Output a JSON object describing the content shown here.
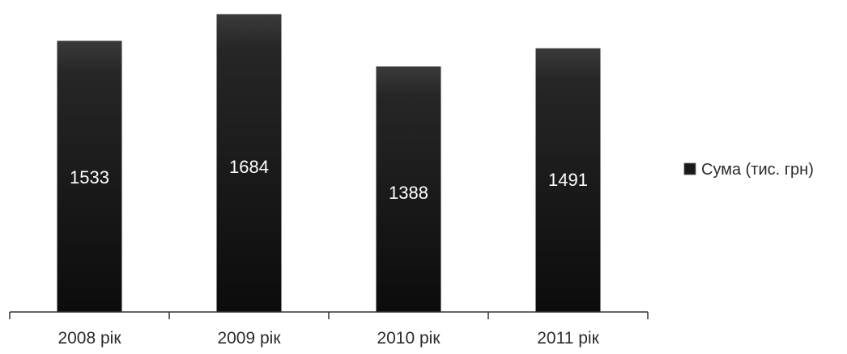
{
  "chart_data": {
    "type": "bar",
    "categories": [
      "2008 рік",
      "2009 рік",
      "2010 рік",
      "2011 рік"
    ],
    "series": [
      {
        "name": "Сума (тис. грн)",
        "values": [
          1533,
          1684,
          1388,
          1491
        ]
      }
    ],
    "title": "",
    "xlabel": "",
    "ylabel": "",
    "ylim": [
      0,
      1700
    ],
    "grid": false,
    "legend": "right",
    "data_labels": [
      "1533",
      "1684",
      "1388",
      "1491"
    ],
    "colors": {
      "bar_top": "#3a3a3a",
      "bar_bottom": "#0c0c0c",
      "axis": "#333333",
      "legend_swatch": "#1a1a1a"
    }
  }
}
